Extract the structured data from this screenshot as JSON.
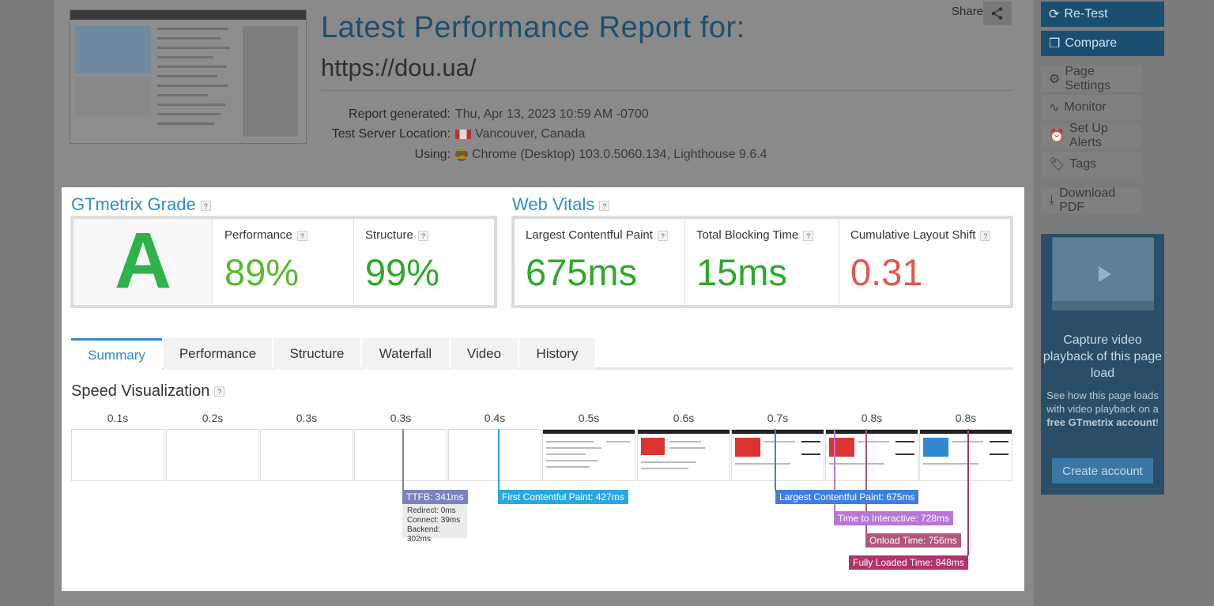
{
  "report": {
    "title": "Latest Performance Report for:",
    "url": "https://dou.ua/",
    "share_label": "Share",
    "meta": [
      {
        "key": "Report generated:",
        "value": "Thu, Apr 13, 2023 10:59 AM -0700"
      },
      {
        "key": "Test Server Location:",
        "value": "Vancouver, Canada"
      },
      {
        "key": "Using:",
        "value": "Chrome (Desktop) 103.0.5060.134, Lighthouse 9.6.4"
      }
    ]
  },
  "sidebar": {
    "retest": "Re-Test",
    "compare": "Compare",
    "page_settings": "Page Settings",
    "monitor": "Monitor",
    "alerts": "Set Up Alerts",
    "tags": "Tags",
    "download": "Download PDF",
    "ad": {
      "line1": "Capture video playback of this page load",
      "line2a": "See how this page loads with video playback on a ",
      "line2b": "free GTmetrix account",
      "line2c": "!",
      "cta": "Create account"
    }
  },
  "grade": {
    "title": "GTmetrix Grade",
    "letter": "A",
    "performance_label": "Performance",
    "performance": "89%",
    "structure_label": "Structure",
    "structure": "99%"
  },
  "vitals": {
    "title": "Web Vitals",
    "lcp_label": "Largest Contentful Paint",
    "lcp": "675ms",
    "tbt_label": "Total Blocking Time",
    "tbt": "15ms",
    "cls_label": "Cumulative Layout Shift",
    "cls": "0.31"
  },
  "tabs": [
    "Summary",
    "Performance",
    "Structure",
    "Waterfall",
    "Video",
    "History"
  ],
  "speed": {
    "title": "Speed Visualization",
    "ticks": [
      "0.1s",
      "0.2s",
      "0.3s",
      "0.3s",
      "0.4s",
      "0.5s",
      "0.6s",
      "0.7s",
      "0.8s",
      "0.8s"
    ],
    "markers": {
      "ttfb": "TTFB: 341ms",
      "fcp": "First Contentful Paint: 427ms",
      "lcp": "Largest Contentful Paint: 675ms",
      "tti": "Time to Interactive: 728ms",
      "onload": "Onload Time: 756ms",
      "fully": "Fully Loaded Time: 848ms"
    },
    "ttfb_detail": [
      "Redirect: 0ms",
      "Connect: 39ms",
      "Backend: 302ms"
    ]
  },
  "colors": {
    "accent": "#2f8ad1",
    "grade_green": "#2fb24a",
    "perf_green": "#5cb82e",
    "struct_green": "#2fa82a",
    "cls_red": "#e2574c",
    "ttfb": "#7a82c2",
    "fcp": "#29a8e0",
    "lcp": "#3d7fe0",
    "tti": "#b877d8",
    "onload": "#b0577a",
    "fully": "#b0336a"
  }
}
